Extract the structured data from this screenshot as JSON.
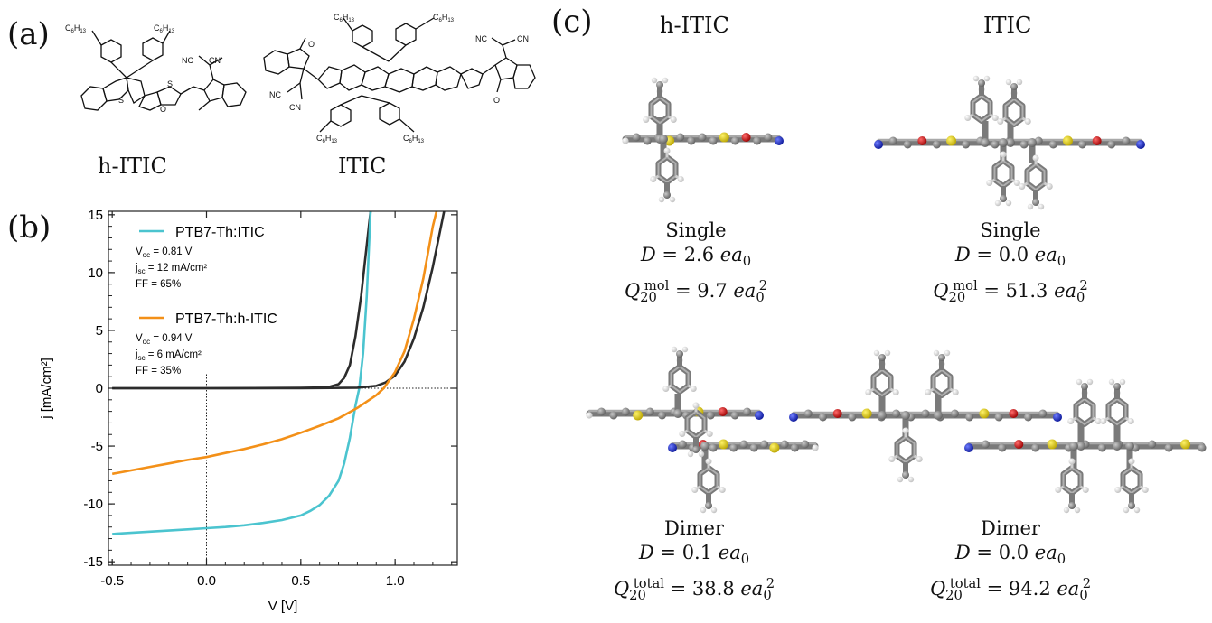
{
  "panels": {
    "a": "(a)",
    "b": "(b)",
    "c": "(c)"
  },
  "structures": {
    "hitic_name": "h-ITIC",
    "itic_name": "ITIC",
    "atom_labels": [
      "C6H13",
      "NC",
      "CN",
      "S",
      "O"
    ]
  },
  "molecules": {
    "col1_title": "h-ITIC",
    "col2_title": "ITIC",
    "single_hitic": {
      "label": "Single",
      "D_sym": "D",
      "D_val": "= 2.6",
      "D_unit": "ea",
      "D_sub": "0",
      "Q_sym": "Q",
      "Q_sub": "20",
      "Q_sup": "mol",
      "Q_val": "= 9.7",
      "Q_unit": "ea",
      "Q_usub": "0",
      "Q_usup": "2"
    },
    "single_itic": {
      "label": "Single",
      "D_sym": "D",
      "D_val": "= 0.0",
      "D_unit": "ea",
      "D_sub": "0",
      "Q_sym": "Q",
      "Q_sub": "20",
      "Q_sup": "mol",
      "Q_val": "= 51.3",
      "Q_unit": "ea",
      "Q_usub": "0",
      "Q_usup": "2"
    },
    "dimer_hitic": {
      "label": "Dimer",
      "D_sym": "D",
      "D_val": "= 0.1",
      "D_unit": "ea",
      "D_sub": "0",
      "Q_sym": "Q",
      "Q_sub": "20",
      "Q_sup": "total",
      "Q_val": "= 38.8",
      "Q_unit": "ea",
      "Q_usub": "0",
      "Q_usup": "2"
    },
    "dimer_itic": {
      "label": "Dimer",
      "D_sym": "D",
      "D_val": "= 0.0",
      "D_unit": "ea",
      "D_sub": "0",
      "Q_sym": "Q",
      "Q_sub": "20",
      "Q_sup": "total",
      "Q_val": "= 94.2",
      "Q_unit": "ea",
      "Q_usub": "0",
      "Q_usup": "2"
    },
    "atom_colors": {
      "carbon": "#7a7a7a",
      "hydrogen": "#eeeeee",
      "sulfur": "#e6d21a",
      "oxygen": "#d01010",
      "nitrogen": "#1a2ad8"
    }
  },
  "chart_data": {
    "type": "line",
    "xlabel": "V [V]",
    "ylabel": "j [mA/cm²]",
    "xlim": [
      -0.52,
      1.33
    ],
    "ylim": [
      -15.3,
      15.3
    ],
    "xticks": [
      -0.5,
      0.0,
      0.5,
      1.0
    ],
    "xtick_labels": [
      "-0.5",
      "0.0",
      "0.5",
      "1.0"
    ],
    "yticks": [
      -15,
      -10,
      -5,
      0,
      5,
      10,
      15
    ],
    "ytick_labels": [
      "-15",
      "-10",
      "-5",
      "0",
      "5",
      "10",
      "15"
    ],
    "grid": false,
    "legend_position": "top-left",
    "series": [
      {
        "name": "PTB7-Th:ITIC",
        "color": "#4bc4cf",
        "stats": [
          {
            "pre": "V",
            "sub": "oc",
            "post": " = 0.81 V"
          },
          {
            "pre": "j",
            "sub": "sc",
            "post": " = 12 mA/cm²"
          },
          {
            "pre": "FF = 65%",
            "sub": "",
            "post": ""
          }
        ],
        "light": [
          [
            -0.5,
            -12.6
          ],
          [
            -0.4,
            -12.5
          ],
          [
            -0.3,
            -12.4
          ],
          [
            -0.2,
            -12.3
          ],
          [
            -0.1,
            -12.2
          ],
          [
            0.0,
            -12.1
          ],
          [
            0.1,
            -12.0
          ],
          [
            0.2,
            -11.85
          ],
          [
            0.3,
            -11.65
          ],
          [
            0.4,
            -11.4
          ],
          [
            0.5,
            -11.0
          ],
          [
            0.55,
            -10.6
          ],
          [
            0.6,
            -10.1
          ],
          [
            0.65,
            -9.3
          ],
          [
            0.7,
            -8.0
          ],
          [
            0.73,
            -6.5
          ],
          [
            0.76,
            -4.3
          ],
          [
            0.79,
            -1.5
          ],
          [
            0.81,
            0.0
          ],
          [
            0.83,
            3.0
          ],
          [
            0.85,
            8.0
          ],
          [
            0.87,
            15.3
          ]
        ],
        "dark": [
          [
            -0.5,
            0.0
          ],
          [
            0.0,
            0.0
          ],
          [
            0.5,
            0.03
          ],
          [
            0.6,
            0.06
          ],
          [
            0.65,
            0.12
          ],
          [
            0.7,
            0.35
          ],
          [
            0.73,
            0.9
          ],
          [
            0.76,
            2.0
          ],
          [
            0.79,
            4.5
          ],
          [
            0.82,
            8.0
          ],
          [
            0.84,
            11.0
          ],
          [
            0.87,
            15.3
          ]
        ]
      },
      {
        "name": "PTB7-Th:h-ITIC",
        "color": "#f39018",
        "stats": [
          {
            "pre": "V",
            "sub": "oc",
            "post": " = 0.94 V"
          },
          {
            "pre": "j",
            "sub": "sc",
            "post": " = 6 mA/cm²"
          },
          {
            "pre": "FF = 35%",
            "sub": "",
            "post": ""
          }
        ],
        "light": [
          [
            -0.5,
            -7.4
          ],
          [
            -0.4,
            -7.1
          ],
          [
            -0.3,
            -6.8
          ],
          [
            -0.2,
            -6.5
          ],
          [
            -0.1,
            -6.2
          ],
          [
            0.0,
            -5.95
          ],
          [
            0.1,
            -5.6
          ],
          [
            0.2,
            -5.25
          ],
          [
            0.3,
            -4.85
          ],
          [
            0.4,
            -4.4
          ],
          [
            0.5,
            -3.85
          ],
          [
            0.6,
            -3.25
          ],
          [
            0.7,
            -2.6
          ],
          [
            0.8,
            -1.7
          ],
          [
            0.9,
            -0.6
          ],
          [
            0.94,
            0.0
          ],
          [
            1.0,
            1.4
          ],
          [
            1.05,
            3.2
          ],
          [
            1.1,
            6.0
          ],
          [
            1.15,
            9.5
          ],
          [
            1.2,
            14.0
          ],
          [
            1.22,
            15.3
          ]
        ],
        "dark": [
          [
            -0.5,
            0.0
          ],
          [
            0.5,
            0.0
          ],
          [
            0.8,
            0.05
          ],
          [
            0.9,
            0.2
          ],
          [
            0.95,
            0.5
          ],
          [
            1.0,
            1.1
          ],
          [
            1.05,
            2.3
          ],
          [
            1.1,
            4.3
          ],
          [
            1.15,
            7.0
          ],
          [
            1.2,
            10.5
          ],
          [
            1.25,
            14.5
          ],
          [
            1.26,
            15.3
          ]
        ]
      }
    ],
    "dark_curve_color": "#2c2c2c"
  }
}
